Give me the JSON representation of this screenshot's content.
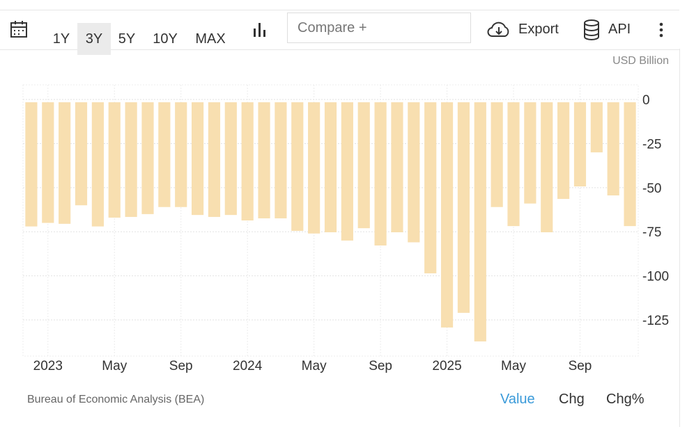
{
  "toolbar": {
    "ranges": [
      "1Y",
      "3Y",
      "5Y",
      "10Y",
      "MAX"
    ],
    "selected": "3Y",
    "compare": "Compare +",
    "export": "Export",
    "api": "API"
  },
  "chart_data": {
    "type": "bar",
    "unit": "USD Billion",
    "color": "#f8dfb0",
    "categories": [
      null,
      "2023",
      null,
      null,
      null,
      "May",
      null,
      null,
      null,
      "Sep",
      null,
      null,
      null,
      "2024",
      null,
      null,
      null,
      "May",
      null,
      null,
      null,
      "Sep",
      null,
      null,
      null,
      "2025",
      null,
      null,
      null,
      "May",
      null,
      null,
      null,
      "Sep",
      null,
      null,
      null
    ],
    "values": [
      -72,
      -70,
      -70.5,
      -60,
      -72,
      -67,
      -66.6,
      -65,
      -61,
      -61,
      -65.5,
      -66.6,
      -65.5,
      -68.6,
      -67.4,
      -67.4,
      -74.5,
      -76,
      -75.3,
      -80,
      -73,
      -82.8,
      -75.3,
      -81,
      -98.6,
      -129.3,
      -121,
      -137.2,
      -61,
      -71.8,
      -59,
      -75.3,
      -56.4,
      -49.3,
      -30,
      -54.4,
      -71.8
    ],
    "ylim": [
      -145.5,
      8.3
    ],
    "yticks": [
      0,
      -25,
      -50,
      -75,
      -100,
      -125
    ],
    "grid": true
  },
  "footer": {
    "source": "Bureau of Economic Analysis (BEA)",
    "tabs": [
      "Value",
      "Chg",
      "Chg%"
    ],
    "active_tab": "Value"
  }
}
